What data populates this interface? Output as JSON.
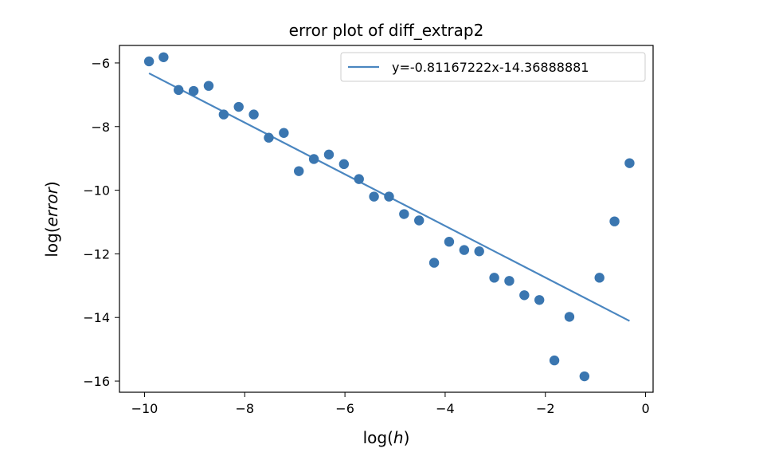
{
  "chart_data": {
    "type": "scatter",
    "title": "error plot of diff_extrap2",
    "xlabel_prefix": "log(",
    "xlabel_var": "h",
    "xlabel_suffix": ")",
    "ylabel_prefix": "log(",
    "ylabel_var": "error",
    "ylabel_suffix": ")",
    "xlim": [
      -10.5,
      0.15
    ],
    "ylim": [
      -16.35,
      -5.45
    ],
    "xticks": [
      -10,
      -8,
      -6,
      -4,
      -2,
      0
    ],
    "yticks": [
      -6,
      -8,
      -10,
      -12,
      -14,
      -16
    ],
    "xtick_labels": [
      "−10",
      "−8",
      "−6",
      "−4",
      "−2",
      "0"
    ],
    "ytick_labels": [
      "−6",
      "−8",
      "−10",
      "−12",
      "−14",
      "−16"
    ],
    "points": [
      [
        -9.91,
        -5.95
      ],
      [
        -9.62,
        -5.82
      ],
      [
        -9.32,
        -6.85
      ],
      [
        -9.02,
        -6.88
      ],
      [
        -8.72,
        -6.72
      ],
      [
        -8.42,
        -7.62
      ],
      [
        -8.12,
        -7.38
      ],
      [
        -7.82,
        -7.62
      ],
      [
        -7.52,
        -8.35
      ],
      [
        -7.22,
        -8.2
      ],
      [
        -6.92,
        -9.4
      ],
      [
        -6.62,
        -9.02
      ],
      [
        -6.32,
        -8.88
      ],
      [
        -6.02,
        -9.18
      ],
      [
        -5.72,
        -9.65
      ],
      [
        -5.42,
        -10.2
      ],
      [
        -5.12,
        -10.2
      ],
      [
        -4.82,
        -10.75
      ],
      [
        -4.52,
        -10.95
      ],
      [
        -4.22,
        -12.28
      ],
      [
        -3.92,
        -11.62
      ],
      [
        -3.62,
        -11.88
      ],
      [
        -3.32,
        -11.92
      ],
      [
        -3.02,
        -12.75
      ],
      [
        -2.72,
        -12.85
      ],
      [
        -2.42,
        -13.3
      ],
      [
        -2.12,
        -13.45
      ],
      [
        -1.82,
        -15.35
      ],
      [
        -1.52,
        -13.98
      ],
      [
        -1.22,
        -15.85
      ],
      [
        -0.92,
        -12.75
      ],
      [
        -0.62,
        -10.98
      ],
      [
        -0.32,
        -9.15
      ]
    ],
    "fit_line": {
      "label": "y=-0.81167222x-14.36888881",
      "slope": -0.81167222,
      "intercept": -14.36888881,
      "x_start": -9.91,
      "x_end": -0.32
    },
    "legend_position": "top-right",
    "grid": false,
    "point_color": "#3a76b0",
    "line_color": "#4a86c0"
  }
}
